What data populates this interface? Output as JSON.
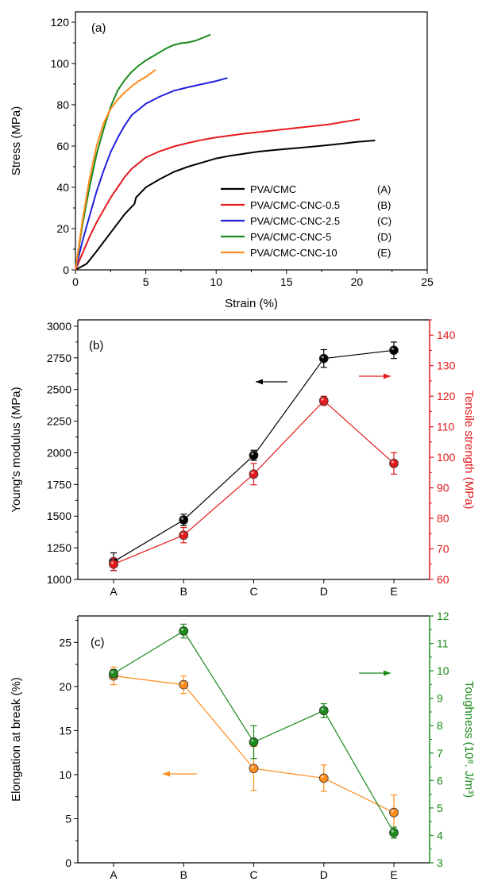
{
  "chart_data": [
    {
      "panel": "(a)",
      "type": "line",
      "xlabel": "Strain (%)",
      "ylabel": "Stress (MPa)",
      "xlim": [
        0,
        25
      ],
      "ylim": [
        0,
        125
      ],
      "xticks": [
        "0",
        "5",
        "10",
        "15",
        "20",
        "25"
      ],
      "yticks": [
        "0",
        "20",
        "40",
        "60",
        "80",
        "100",
        "120"
      ],
      "legend_position": "bottom-right",
      "series": [
        {
          "name": "PVA/CMC",
          "tag": "(A)",
          "color": "#000000",
          "x": [
            0,
            0.8,
            1.5,
            2.5,
            3.5,
            4.2,
            4.3,
            5,
            6,
            7,
            8,
            9,
            10,
            11,
            12,
            13,
            14,
            15,
            16,
            17,
            18,
            19,
            20,
            21.3
          ],
          "y": [
            0,
            3,
            9,
            18,
            27,
            32,
            35,
            40,
            44,
            47.5,
            50,
            52,
            54,
            55.3,
            56.3,
            57.3,
            58,
            58.6,
            59.2,
            59.8,
            60.5,
            61.2,
            62,
            62.7
          ]
        },
        {
          "name": "PVA/CMC-CNC-0.5",
          "tag": "(B)",
          "color": "#e41a1c",
          "x": [
            0,
            0.5,
            1,
            1.5,
            2,
            2.5,
            3,
            3.5,
            4,
            5,
            6,
            7,
            8,
            9,
            10,
            12,
            14,
            16,
            18,
            20.2
          ],
          "y": [
            0,
            8,
            16,
            23,
            29,
            35,
            40,
            45,
            49,
            54.5,
            57.5,
            59.8,
            61.5,
            63,
            64.2,
            66,
            67.5,
            69,
            70.5,
            73
          ]
        },
        {
          "name": "PVA/CMC-CNC-2.5",
          "tag": "(C)",
          "color": "#1f1fe0",
          "x": [
            0,
            0.5,
            1,
            1.5,
            2,
            2.5,
            3,
            3.5,
            4,
            5,
            6,
            7,
            8,
            9,
            10,
            10.8
          ],
          "y": [
            0,
            14,
            26,
            38,
            48,
            57,
            64,
            70,
            75,
            80.5,
            84,
            86.8,
            88.5,
            90,
            91.5,
            93
          ]
        },
        {
          "name": "PVA/CMC-CNC-5",
          "tag": "(D)",
          "color": "#1a8a1a",
          "x": [
            0,
            0.5,
            1,
            1.5,
            2,
            2.5,
            3,
            3.5,
            4,
            4.5,
            5,
            5.5,
            6,
            6.5,
            7,
            7.5,
            8,
            8.5,
            9,
            9.6
          ],
          "y": [
            0,
            22,
            40,
            56,
            68,
            79,
            87,
            92,
            96,
            99,
            101.5,
            103.5,
            105.5,
            107.5,
            109,
            109.8,
            110.2,
            111,
            112.3,
            114
          ]
        },
        {
          "name": "PVA/CMC-CNC-10",
          "tag": "(E)",
          "color": "#ff8c1a",
          "x": [
            0,
            0.5,
            1,
            1.5,
            2,
            2.5,
            3,
            3.5,
            4,
            4.5,
            5,
            5.7
          ],
          "y": [
            0,
            24,
            44,
            60,
            71,
            78,
            82.5,
            86,
            89,
            91.5,
            93.5,
            97
          ]
        }
      ]
    },
    {
      "panel": "(b)",
      "type": "line",
      "categories": [
        "A",
        "B",
        "C",
        "D",
        "E"
      ],
      "ylabel": "Young's modulus (MPa)",
      "ylim": [
        1000,
        3050
      ],
      "yticks": [
        "1000",
        "1250",
        "1500",
        "1750",
        "2000",
        "2250",
        "2500",
        "2750",
        "3000"
      ],
      "ylabel_right": "Tensile strength (MPa)",
      "ylim_right": [
        60,
        145
      ],
      "yticks_right": [
        "60",
        "70",
        "80",
        "90",
        "100",
        "110",
        "120",
        "130",
        "140"
      ],
      "series": [
        {
          "axis": "left",
          "color": "#000000",
          "values": [
            1140,
            1470,
            1980,
            2745,
            2810
          ],
          "errors": [
            70,
            45,
            40,
            70,
            65
          ]
        },
        {
          "axis": "right",
          "color": "#e41a1c",
          "values": [
            65,
            74.5,
            94.5,
            118.5,
            98
          ],
          "errors": [
            2,
            2.5,
            3.5,
            1.5,
            3.5
          ]
        }
      ]
    },
    {
      "panel": "(c)",
      "type": "line",
      "categories": [
        "A",
        "B",
        "C",
        "D",
        "E"
      ],
      "ylabel": "Elongation at break (%)",
      "ylim": [
        0,
        28
      ],
      "yticks": [
        "0",
        "5",
        "10",
        "15",
        "20",
        "25"
      ],
      "ylabel_right": "Toughness (10⁸. J/m³)",
      "ylim_right": [
        3,
        12
      ],
      "yticks_right": [
        "3",
        "4",
        "5",
        "6",
        "7",
        "8",
        "9",
        "10",
        "11",
        "12"
      ],
      "series": [
        {
          "axis": "left",
          "color": "#ff8c1a",
          "values": [
            21.2,
            20.2,
            10.7,
            9.6,
            5.7
          ],
          "errors": [
            1,
            1,
            2.5,
            1.5,
            2
          ]
        },
        {
          "axis": "right",
          "color": "#1a8a1a",
          "values": [
            9.9,
            11.45,
            7.4,
            8.55,
            4.1
          ],
          "errors": [
            0.15,
            0.25,
            0.6,
            0.25,
            0.2
          ]
        }
      ]
    }
  ]
}
